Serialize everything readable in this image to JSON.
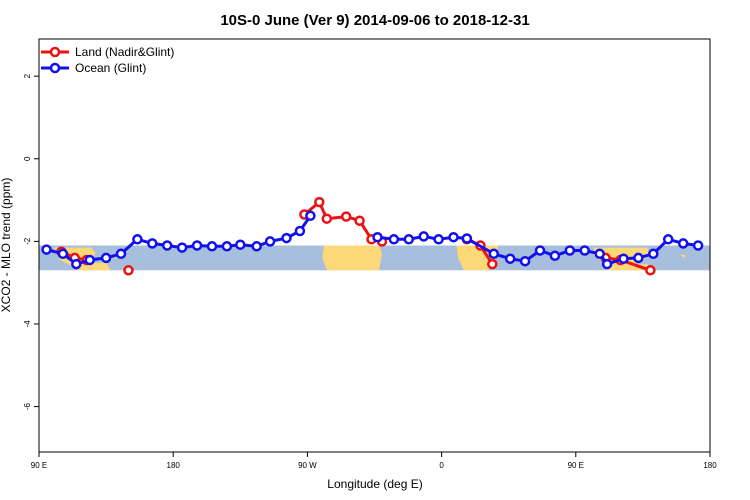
{
  "chart_data": {
    "type": "line",
    "title": "10S-0 June (Ver 9)   2014-09-06 to 2018-12-31",
    "xlabel": "Longitude (deg E)",
    "ylabel": "XCO2 - MLO trend (ppm)",
    "xlim": [
      90,
      540
    ],
    "ylim": [
      -7.1,
      2.9
    ],
    "x_ticks": [
      {
        "value": 90,
        "label": "90 E"
      },
      {
        "value": 180,
        "label": "180"
      },
      {
        "value": 270,
        "label": "90 W"
      },
      {
        "value": 360,
        "label": "0"
      },
      {
        "value": 450,
        "label": "90 E"
      },
      {
        "value": 540,
        "label": "180"
      }
    ],
    "y_ticks": [
      {
        "value": 2,
        "label": "2"
      },
      {
        "value": 0,
        "label": "0"
      },
      {
        "value": -2,
        "label": "-2"
      },
      {
        "value": -4,
        "label": "-4"
      },
      {
        "value": -6,
        "label": "-6"
      }
    ],
    "map_band": {
      "lat_range": [
        -10,
        0
      ],
      "y_range": [
        -2.7,
        -2.1
      ],
      "ocean_color": "#a7bedc",
      "land_color": "#fdd879"
    },
    "legend_position": "top-left",
    "series": [
      {
        "name": "Land (Nadir&Glint)",
        "color": "#ee1111",
        "points": [
          [
            105,
            -2.25
          ],
          [
            114,
            -2.4
          ],
          [
            122,
            -2.45
          ],
          [
            150,
            -2.7
          ],
          [
            268,
            -1.35
          ],
          [
            278,
            -1.05
          ],
          [
            283,
            -1.45
          ],
          [
            296,
            -1.4
          ],
          [
            305,
            -1.5
          ],
          [
            313,
            -1.95
          ],
          [
            320,
            -2.0
          ],
          [
            377,
            -1.95
          ],
          [
            386,
            -2.1
          ],
          [
            394,
            -2.55
          ],
          [
            470,
            -2.4
          ],
          [
            480,
            -2.45
          ],
          [
            500,
            -2.7
          ]
        ]
      },
      {
        "name": "Ocean (Glint)",
        "color": "#1111ee",
        "points": [
          [
            95,
            -2.2
          ],
          [
            106,
            -2.3
          ],
          [
            115,
            -2.55
          ],
          [
            124,
            -2.45
          ],
          [
            135,
            -2.4
          ],
          [
            145,
            -2.3
          ],
          [
            156,
            -1.95
          ],
          [
            166,
            -2.05
          ],
          [
            176,
            -2.1
          ],
          [
            186,
            -2.15
          ],
          [
            196,
            -2.1
          ],
          [
            206,
            -2.12
          ],
          [
            216,
            -2.12
          ],
          [
            225,
            -2.08
          ],
          [
            236,
            -2.12
          ],
          [
            245,
            -2.0
          ],
          [
            256,
            -1.92
          ],
          [
            265,
            -1.75
          ],
          [
            272,
            -1.38
          ],
          [
            317,
            -1.9
          ],
          [
            328,
            -1.95
          ],
          [
            338,
            -1.95
          ],
          [
            348,
            -1.88
          ],
          [
            358,
            -1.95
          ],
          [
            368,
            -1.9
          ],
          [
            377,
            -1.93
          ],
          [
            395,
            -2.3
          ],
          [
            406,
            -2.42
          ],
          [
            416,
            -2.48
          ],
          [
            426,
            -2.22
          ],
          [
            436,
            -2.35
          ],
          [
            446,
            -2.22
          ],
          [
            456,
            -2.22
          ],
          [
            466,
            -2.3
          ],
          [
            471,
            -2.55
          ],
          [
            482,
            -2.42
          ],
          [
            492,
            -2.4
          ],
          [
            502,
            -2.3
          ],
          [
            512,
            -1.95
          ],
          [
            522,
            -2.05
          ],
          [
            532,
            -2.1
          ]
        ]
      }
    ]
  }
}
